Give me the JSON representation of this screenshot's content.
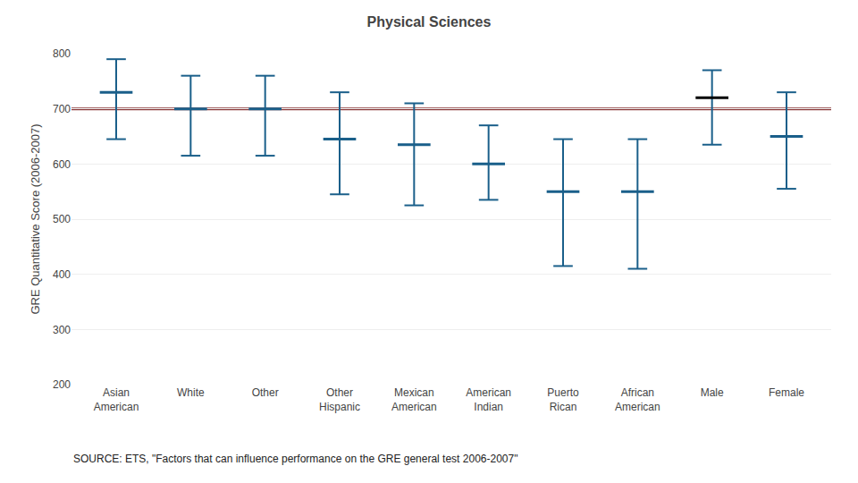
{
  "chart_data": {
    "type": "range",
    "title": "Physical Sciences",
    "ylabel": "GRE Quantitative Score (2006-2007)",
    "annotation": "SOURCE: ETS, \"Factors that can influence performance on the GRE general test 2006-2007\"",
    "categories": [
      "Asian\nAmerican",
      "White",
      "Other",
      "Other\nHispanic",
      "Mexican\nAmerican",
      "American\nIndian",
      "Puerto\nRican",
      "African\nAmerican",
      "Male",
      "Female"
    ],
    "values": [
      730,
      700,
      700,
      645,
      635,
      600,
      550,
      550,
      720,
      650
    ],
    "upper": [
      790,
      760,
      760,
      730,
      710,
      670,
      645,
      645,
      770,
      730
    ],
    "lower": [
      645,
      615,
      615,
      545,
      525,
      535,
      415,
      410,
      635,
      555
    ],
    "color": "#1a5f8a",
    "colors": [
      "#1a5f8a",
      "#1a5f8a",
      "#1a5f8a",
      "#1a5f8a",
      "#1a5f8a",
      "#1a5f8a",
      "#1a5f8a",
      "#1a5f8a",
      "#000000",
      "#1a5f8a"
    ],
    "reference_line": {
      "value": 700,
      "color": "#8B3A3A"
    },
    "ylim": [
      200,
      800
    ],
    "yticks": [
      200,
      300,
      400,
      500,
      600,
      700,
      800
    ],
    "grid": true
  }
}
